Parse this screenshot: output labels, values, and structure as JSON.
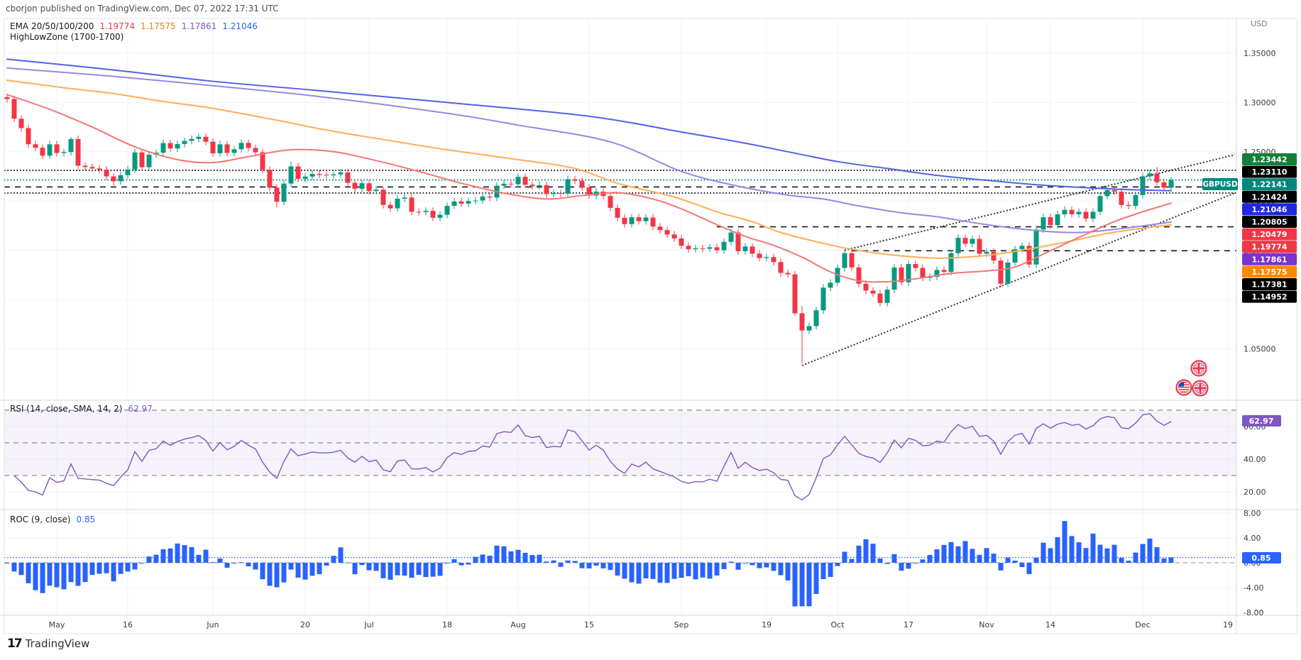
{
  "header": {
    "attribution": "cborjon published on TradingView.com, Dec 07, 2022 17:31 UTC"
  },
  "legend": {
    "ema_label": "EMA 20/50/100/200",
    "ema_values": [
      {
        "text": "1.19774",
        "color": "#f23645"
      },
      {
        "text": "1.17575",
        "color": "#f57c00"
      },
      {
        "text": "1.17861",
        "color": "#7e57c2"
      },
      {
        "text": "1.21046",
        "color": "#2962ff"
      }
    ],
    "hlz_label": "HighLowZone (1700-1700)"
  },
  "symbol_badge": {
    "text": "GBPUSD",
    "color": "#00897b"
  },
  "price_scale": {
    "currency_label": "USD",
    "ticks": [
      {
        "text": "1.35000",
        "price": 1.35
      },
      {
        "text": "1.30000",
        "price": 1.3
      },
      {
        "text": "1.25000",
        "price": 1.25
      },
      {
        "text": "1.20000",
        "price": 1.2
      },
      {
        "text": "1.15000",
        "price": 1.15
      },
      {
        "text": "1.10000",
        "price": 1.1
      },
      {
        "text": "1.05000",
        "price": 1.05
      }
    ],
    "badges": [
      {
        "text": "1.23442",
        "bg": "#128039"
      },
      {
        "text": "1.23110",
        "bg": "#000000"
      },
      {
        "text": "1.22141",
        "bg": "#00897b"
      },
      {
        "text": "1.21424",
        "bg": "#000000"
      },
      {
        "text": "1.21046",
        "bg": "#2028dd"
      },
      {
        "text": "1.20805",
        "bg": "#000000"
      },
      {
        "text": "1.20479",
        "bg": "#f23645"
      },
      {
        "text": "1.19774",
        "bg": "#f23645"
      },
      {
        "text": "1.17861",
        "bg": "#7a33cc"
      },
      {
        "text": "1.17575",
        "bg": "#ff8800"
      },
      {
        "text": "1.17381",
        "bg": "#000000"
      },
      {
        "text": "1.14952",
        "bg": "#000000"
      }
    ]
  },
  "time_axis": {
    "labels": [
      {
        "text": "May",
        "i": 7
      },
      {
        "text": "16",
        "i": 17
      },
      {
        "text": "Jun",
        "i": 29
      },
      {
        "text": "20",
        "i": 42
      },
      {
        "text": "Jul",
        "i": 51
      },
      {
        "text": "18",
        "i": 62
      },
      {
        "text": "Aug",
        "i": 72
      },
      {
        "text": "15",
        "i": 82
      },
      {
        "text": "Sep",
        "i": 95
      },
      {
        "text": "19",
        "i": 107
      },
      {
        "text": "Oct",
        "i": 117
      },
      {
        "text": "17",
        "i": 127
      },
      {
        "text": "Nov",
        "i": 138
      },
      {
        "text": "14",
        "i": 147
      },
      {
        "text": "Dec",
        "i": 160
      },
      {
        "text": "19",
        "i": 172
      }
    ]
  },
  "rsi_panel": {
    "label": "RSI (14, close, SMA, 14, 2)",
    "value": "62.97",
    "value_color": "#7e57c2",
    "line_color": "#7e57c2",
    "band_fill": "rgba(126,87,194,0.08)",
    "bands": [
      70,
      50,
      30
    ],
    "ticks": [
      {
        "text": "60.00",
        "v": 60
      },
      {
        "text": "40.00",
        "v": 40
      },
      {
        "text": "20.00",
        "v": 20
      }
    ],
    "badge_bg": "#7e57c2"
  },
  "roc_panel": {
    "label": "ROC (9, close)",
    "value": "0.85",
    "value_color": "#2962ff",
    "bar_color": "#2962ff",
    "level": 0.85,
    "level_color": "#2962ff",
    "ticks": [
      {
        "text": "8.00",
        "v": 8
      },
      {
        "text": "4.00",
        "v": 4
      },
      {
        "text": "0.00",
        "v": 0
      },
      {
        "text": "-4.00",
        "v": -4
      },
      {
        "text": "-8.00",
        "v": -8
      }
    ],
    "badge_bg": "#2962ff"
  },
  "footer": {
    "logo_glyph": "17",
    "brand": "TradingView"
  },
  "chart_data": {
    "type": "candlestick",
    "symbol": "GBPUSD",
    "timeframe": "1D",
    "ylabel": "USD",
    "colors": {
      "up": "#089981",
      "down": "#f23645",
      "ema20": "#f77575",
      "ema50": "#ffad57",
      "ema100": "#9589e3",
      "ema200": "#5560e6",
      "line_black": "#16181d",
      "teal_line": "#00897b",
      "grid": "#f0f3fa",
      "separator": "#d6d9e0",
      "frame": "#e0e3eb",
      "axis_text": "#363a45",
      "zero_dash": "#8a8e98"
    },
    "dates": [
      "04-21",
      "04-22",
      "04-25",
      "04-26",
      "04-27",
      "04-28",
      "04-29",
      "05-02",
      "05-03",
      "05-04",
      "05-05",
      "05-06",
      "05-09",
      "05-10",
      "05-11",
      "05-12",
      "05-13",
      "05-16",
      "05-17",
      "05-18",
      "05-19",
      "05-20",
      "05-23",
      "05-24",
      "05-25",
      "05-26",
      "05-27",
      "05-30",
      "05-31",
      "06-01",
      "06-02",
      "06-03",
      "06-06",
      "06-07",
      "06-08",
      "06-09",
      "06-10",
      "06-13",
      "06-14",
      "06-15",
      "06-16",
      "06-17",
      "06-20",
      "06-21",
      "06-22",
      "06-23",
      "06-24",
      "06-27",
      "06-28",
      "06-29",
      "06-30",
      "07-01",
      "07-04",
      "07-05",
      "07-06",
      "07-07",
      "07-08",
      "07-11",
      "07-12",
      "07-13",
      "07-14",
      "07-15",
      "07-18",
      "07-19",
      "07-20",
      "07-21",
      "07-22",
      "07-25",
      "07-26",
      "07-27",
      "07-28",
      "07-29",
      "08-01",
      "08-02",
      "08-03",
      "08-04",
      "08-05",
      "08-08",
      "08-09",
      "08-10",
      "08-11",
      "08-12",
      "08-15",
      "08-16",
      "08-17",
      "08-18",
      "08-19",
      "08-22",
      "08-23",
      "08-24",
      "08-25",
      "08-26",
      "08-29",
      "08-30",
      "08-31",
      "09-01",
      "09-02",
      "09-05",
      "09-06",
      "09-07",
      "09-08",
      "09-09",
      "09-12",
      "09-13",
      "09-14",
      "09-15",
      "09-16",
      "09-19",
      "09-20",
      "09-21",
      "09-22",
      "09-23",
      "09-26",
      "09-27",
      "09-28",
      "09-29",
      "09-30",
      "10-03",
      "10-04",
      "10-05",
      "10-06",
      "10-07",
      "10-10",
      "10-11",
      "10-12",
      "10-13",
      "10-14",
      "10-17",
      "10-18",
      "10-19",
      "10-20",
      "10-21",
      "10-24",
      "10-25",
      "10-26",
      "10-27",
      "10-28",
      "10-31",
      "11-01",
      "11-02",
      "11-03",
      "11-04",
      "11-07",
      "11-08",
      "11-09",
      "11-10",
      "11-11",
      "11-14",
      "11-15",
      "11-16",
      "11-17",
      "11-18",
      "11-21",
      "11-22",
      "11-23",
      "11-24",
      "11-25",
      "11-28",
      "11-29",
      "11-30",
      "12-01",
      "12-02",
      "12-05",
      "12-06",
      "12-07"
    ],
    "pre_closes": [
      1.311,
      1.3132,
      1.308,
      1.3073,
      1.3036,
      1.3018,
      1.2995,
      1.3005,
      1.312,
      1.31,
      1.3058,
      1.2999,
      1.3055
    ],
    "first_open": 1.3055,
    "closes": [
      1.3035,
      1.2835,
      1.274,
      1.2576,
      1.254,
      1.246,
      1.2575,
      1.2487,
      1.2497,
      1.2629,
      1.2358,
      1.2345,
      1.233,
      1.2318,
      1.225,
      1.22,
      1.2262,
      1.232,
      1.2493,
      1.2343,
      1.247,
      1.249,
      1.2588,
      1.2533,
      1.2578,
      1.261,
      1.263,
      1.2652,
      1.2602,
      1.2484,
      1.2575,
      1.2488,
      1.2525,
      1.259,
      1.2538,
      1.2494,
      1.2316,
      1.2135,
      1.1992,
      1.2177,
      1.2351,
      1.2225,
      1.2248,
      1.2275,
      1.2265,
      1.226,
      1.227,
      1.229,
      1.2184,
      1.2123,
      1.218,
      1.21,
      1.2115,
      1.196,
      1.1925,
      1.2023,
      1.2035,
      1.189,
      1.1888,
      1.19,
      1.183,
      1.186,
      1.195,
      1.1995,
      1.1973,
      1.2,
      1.2005,
      1.2045,
      1.2035,
      1.2155,
      1.2175,
      1.217,
      1.2245,
      1.2165,
      1.215,
      1.216,
      1.207,
      1.208,
      1.2075,
      1.222,
      1.2205,
      1.2137,
      1.2055,
      1.2095,
      1.205,
      1.193,
      1.183,
      1.1765,
      1.1835,
      1.1795,
      1.1832,
      1.174,
      1.1705,
      1.166,
      1.162,
      1.1545,
      1.151,
      1.152,
      1.1515,
      1.153,
      1.15,
      1.1585,
      1.168,
      1.149,
      1.1538,
      1.1465,
      1.142,
      1.143,
      1.138,
      1.127,
      1.1255,
      1.086,
      1.0685,
      1.073,
      1.089,
      1.112,
      1.117,
      1.132,
      1.147,
      1.1325,
      1.116,
      1.109,
      1.106,
      1.0965,
      1.11,
      1.1325,
      1.1175,
      1.136,
      1.132,
      1.122,
      1.123,
      1.13,
      1.128,
      1.147,
      1.1625,
      1.1565,
      1.1615,
      1.1465,
      1.1485,
      1.1395,
      1.116,
      1.1375,
      1.151,
      1.1545,
      1.1355,
      1.171,
      1.1835,
      1.1755,
      1.1865,
      1.191,
      1.1865,
      1.189,
      1.182,
      1.189,
      1.205,
      1.211,
      1.2095,
      1.196,
      1.195,
      1.206,
      1.225,
      1.228,
      1.219,
      1.2135,
      1.2214
    ],
    "wick": 0.0035,
    "wick_overrides": {
      "9": {
        "h": 1.2648
      },
      "15": {
        "l": 1.2155
      },
      "38": {
        "l": 1.1934
      },
      "40": {
        "h": 1.24
      },
      "111": {
        "l": 1.0838
      },
      "112": {
        "h": 1.0935,
        "l": 1.035
      },
      "162": {
        "h": 1.2345
      },
      "164": {
        "h": 1.2245,
        "l": 1.2108
      }
    },
    "emas": {
      "ema20": {
        "period": 20,
        "last": 1.19774,
        "points": [
          [
            0,
            1.308
          ],
          [
            6,
            1.293
          ],
          [
            12,
            1.275
          ],
          [
            18,
            1.255
          ],
          [
            24,
            1.242
          ],
          [
            29,
            1.239
          ],
          [
            34,
            1.245
          ],
          [
            40,
            1.252
          ],
          [
            46,
            1.25
          ],
          [
            52,
            1.241
          ],
          [
            58,
            1.23
          ],
          [
            64,
            1.218
          ],
          [
            70,
            1.208
          ],
          [
            76,
            1.202
          ],
          [
            81,
            1.2055
          ],
          [
            86,
            1.2085
          ],
          [
            91,
            1.202
          ],
          [
            95,
            1.192
          ],
          [
            100,
            1.176
          ],
          [
            104,
            1.164
          ],
          [
            108,
            1.155
          ],
          [
            112,
            1.143
          ],
          [
            116,
            1.128
          ],
          [
            120,
            1.119
          ],
          [
            124,
            1.118
          ],
          [
            128,
            1.121
          ],
          [
            133,
            1.1265
          ],
          [
            138,
            1.129
          ],
          [
            142,
            1.133
          ],
          [
            146,
            1.146
          ],
          [
            151,
            1.163
          ],
          [
            156,
            1.179
          ],
          [
            160,
            1.189
          ],
          [
            164,
            1.19774
          ]
        ]
      },
      "ema50": {
        "period": 50,
        "last": 1.17575,
        "points": [
          [
            0,
            1.3225
          ],
          [
            8,
            1.315
          ],
          [
            15,
            1.309
          ],
          [
            22,
            1.301
          ],
          [
            29,
            1.294
          ],
          [
            38,
            1.282
          ],
          [
            45,
            1.272
          ],
          [
            55,
            1.26
          ],
          [
            62,
            1.252
          ],
          [
            72,
            1.242
          ],
          [
            80,
            1.233
          ],
          [
            86,
            1.218
          ],
          [
            94,
            1.204
          ],
          [
            100,
            1.189
          ],
          [
            105,
            1.179
          ],
          [
            109,
            1.168
          ],
          [
            115,
            1.157
          ],
          [
            119,
            1.151
          ],
          [
            125,
            1.145
          ],
          [
            131,
            1.142
          ],
          [
            137,
            1.144
          ],
          [
            143,
            1.15
          ],
          [
            149,
            1.158
          ],
          [
            155,
            1.167
          ],
          [
            160,
            1.1725
          ],
          [
            164,
            1.17575
          ]
        ]
      },
      "ema100": {
        "period": 100,
        "last": 1.17861,
        "points": [
          [
            0,
            1.335
          ],
          [
            15,
            1.3265
          ],
          [
            29,
            1.317
          ],
          [
            44,
            1.306
          ],
          [
            62,
            1.289
          ],
          [
            72,
            1.277
          ],
          [
            85,
            1.26
          ],
          [
            95,
            1.23
          ],
          [
            103,
            1.215
          ],
          [
            110,
            1.206
          ],
          [
            115,
            1.202
          ],
          [
            120,
            1.195
          ],
          [
            126,
            1.188
          ],
          [
            131,
            1.184
          ],
          [
            138,
            1.176
          ],
          [
            145,
            1.17
          ],
          [
            151,
            1.168
          ],
          [
            157,
            1.172
          ],
          [
            164,
            1.17861
          ]
        ]
      },
      "ema200": {
        "period": 200,
        "last": 1.21046,
        "points": [
          [
            0,
            1.344
          ],
          [
            15,
            1.333
          ],
          [
            29,
            1.3215
          ],
          [
            44,
            1.312
          ],
          [
            62,
            1.3
          ],
          [
            82,
            1.286
          ],
          [
            95,
            1.27
          ],
          [
            103,
            1.26
          ],
          [
            110,
            1.25
          ],
          [
            117,
            1.24
          ],
          [
            124,
            1.233
          ],
          [
            131,
            1.226
          ],
          [
            138,
            1.221
          ],
          [
            145,
            1.2165
          ],
          [
            152,
            1.2135
          ],
          [
            158,
            1.2115
          ],
          [
            164,
            1.21046
          ]
        ]
      }
    },
    "hlines": [
      {
        "price": 1.2311,
        "style": "dotted",
        "color": "#16181d"
      },
      {
        "price": 1.22141,
        "style": "dotted",
        "color": "#00897b"
      },
      {
        "price": 1.21424,
        "style": "dashed",
        "color": "#16181d"
      },
      {
        "price": 1.20805,
        "style": "dotted",
        "color": "#16181d"
      },
      {
        "price": 1.17381,
        "style": "dashed",
        "color": "#16181d",
        "from_i": 100
      },
      {
        "price": 1.14952,
        "style": "dashed",
        "color": "#16181d",
        "from_i": 119
      }
    ],
    "trendlines": [
      {
        "i1": 112,
        "p1": 1.033,
        "i2": 173,
        "p2": 1.2081
      },
      {
        "i1": 118,
        "p1": 1.15,
        "i2": 173,
        "p2": 1.247
      }
    ],
    "rsi": {
      "period": 14,
      "last": 62.97,
      "upper": 70,
      "mid": 50,
      "lower": 30
    },
    "roc": {
      "period": 9,
      "last": 0.85
    },
    "price_axis_range_visible": [
      1.02,
      1.363
    ]
  }
}
